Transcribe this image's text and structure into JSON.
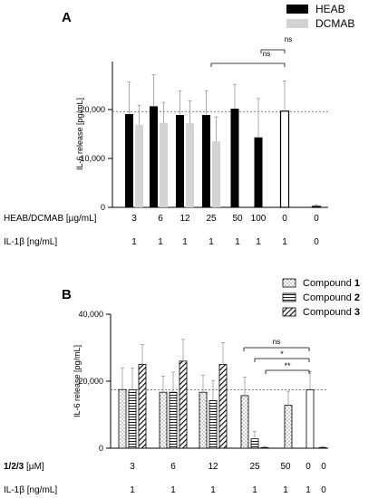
{
  "chart_data": [
    {
      "type": "bar",
      "panel_label": "A",
      "ylabel": "IL-6 release [pg/mL]",
      "ylim": [
        0,
        30000
      ],
      "yticks": [
        "0",
        "10,000",
        "20,000"
      ],
      "yticks_values": [
        0,
        10000,
        20000
      ],
      "reference_line": 19700,
      "legend_position": "top-right",
      "row_labels": {
        "conc": "HEAB/DCMAB [µg/mL]",
        "il": "IL-1β [ng/mL]"
      },
      "categories": [
        "3",
        "6",
        "12",
        "25",
        "50",
        "100",
        "0",
        "0"
      ],
      "il1b": [
        "1",
        "1",
        "1",
        "1",
        "1",
        "1",
        "1",
        "0"
      ],
      "series": [
        {
          "name": "HEAB",
          "color": "#000000",
          "values": [
            19200,
            20800,
            19000,
            19000,
            20300,
            14400,
            null,
            null
          ],
          "errors": [
            6600,
            6500,
            5000,
            5000,
            5000,
            8000,
            null,
            null
          ]
        },
        {
          "name": "DCMAB",
          "color": "#d3d3d3",
          "values": [
            17000,
            17400,
            17300,
            13600,
            null,
            null,
            null,
            null
          ],
          "errors": [
            4000,
            4200,
            4600,
            5000,
            null,
            null,
            null,
            null
          ]
        },
        {
          "name": "",
          "color": "#ffffff",
          "values": [
            null,
            null,
            null,
            null,
            null,
            null,
            19800,
            200
          ],
          "errors": [
            null,
            null,
            null,
            null,
            null,
            null,
            6200,
            300
          ]
        }
      ],
      "significance": [
        {
          "label": "ns",
          "from_cat": 3,
          "to_cat": 6
        },
        {
          "label": "ns",
          "from_cat": 5,
          "to_cat": 6
        }
      ]
    },
    {
      "type": "bar",
      "panel_label": "B",
      "ylabel": "IL-6 release [pg/mL]",
      "ylim": [
        0,
        40000
      ],
      "yticks": [
        "0",
        "20,000",
        "40,000"
      ],
      "yticks_values": [
        0,
        20000,
        40000
      ],
      "reference_line": 17400,
      "legend_position": "top-right",
      "row_labels": {
        "conc_prefix": "1/2/3",
        "conc_suffix": " [µM]",
        "il": "IL-1β [ng/mL]"
      },
      "categories": [
        "3",
        "6",
        "12",
        "25",
        "50",
        "0",
        "0"
      ],
      "il1b": [
        "1",
        "1",
        "1",
        "1",
        "1",
        "1",
        "0"
      ],
      "series": [
        {
          "name_text": "Compound ",
          "name_num": "1",
          "pattern": "dots",
          "values": [
            17500,
            16700,
            16700,
            15700,
            12800,
            null,
            null
          ],
          "errors": [
            6500,
            4800,
            5000,
            5500,
            4200,
            null,
            null
          ]
        },
        {
          "name_text": "Compound ",
          "name_num": "2",
          "pattern": "hlines",
          "values": [
            17400,
            16700,
            14200,
            2800,
            null,
            null,
            null
          ],
          "errors": [
            6500,
            6000,
            6000,
            2200,
            null,
            null,
            null
          ]
        },
        {
          "name_text": "Compound ",
          "name_num": "3",
          "pattern": "diag",
          "values": [
            25000,
            26000,
            25000,
            200,
            null,
            null,
            null
          ],
          "errors": [
            6000,
            6500,
            6500,
            300,
            null,
            null,
            null
          ]
        },
        {
          "name_text": "",
          "name_num": "",
          "pattern": "none",
          "values": [
            null,
            null,
            null,
            null,
            null,
            17400,
            200
          ],
          "errors": [
            null,
            null,
            null,
            null,
            null,
            5500,
            300
          ]
        }
      ],
      "significance": [
        {
          "label": "ns",
          "from_cat": 3,
          "to_cat": 5
        },
        {
          "label": "*",
          "from_cat": 3,
          "to_cat": 5
        },
        {
          "label": "**",
          "from_cat": 3,
          "to_cat": 5
        }
      ]
    }
  ]
}
